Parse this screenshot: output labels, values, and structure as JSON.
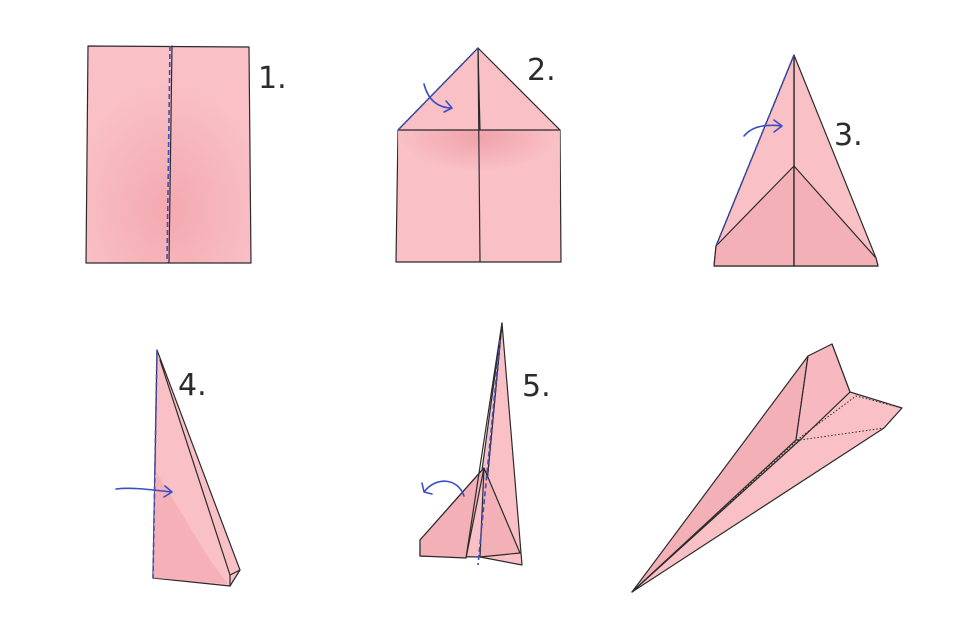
{
  "steps": [
    {
      "label": "1."
    },
    {
      "label": "2."
    },
    {
      "label": "3."
    },
    {
      "label": "4."
    },
    {
      "label": "5."
    }
  ],
  "colors": {
    "paper": "#f9c1c6",
    "paper_shade": "#f0a3ab",
    "outline": "#2b2b2b",
    "fold_line": "#3b4fc4",
    "arrow": "#3b4fc4"
  },
  "icons": {
    "fold_arrow": "curved-arrow-icon",
    "completed_plane": "paper-plane-icon"
  }
}
